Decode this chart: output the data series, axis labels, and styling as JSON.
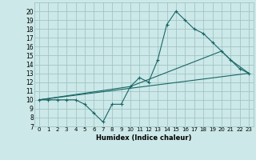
{
  "xlabel": "Humidex (Indice chaleur)",
  "bg_color": "#cce8e8",
  "line_color": "#1a6666",
  "xlim": [
    -0.5,
    23.5
  ],
  "ylim": [
    7,
    21
  ],
  "yticks": [
    7,
    8,
    9,
    10,
    11,
    12,
    13,
    14,
    15,
    16,
    17,
    18,
    19,
    20
  ],
  "xticks": [
    0,
    1,
    2,
    3,
    4,
    5,
    6,
    7,
    8,
    9,
    10,
    11,
    12,
    13,
    14,
    15,
    16,
    17,
    18,
    19,
    20,
    21,
    22,
    23
  ],
  "line1_x": [
    0,
    1,
    2,
    3,
    4,
    5,
    6,
    7,
    8,
    9,
    10,
    11,
    12,
    13,
    14,
    15,
    16,
    17,
    18,
    19,
    20,
    21,
    22,
    23
  ],
  "line1_y": [
    10,
    10,
    10,
    10,
    10,
    9.5,
    8.5,
    7.5,
    9.5,
    9.5,
    11.5,
    12.5,
    12,
    14.5,
    18.5,
    20,
    19,
    18,
    17.5,
    16.5,
    15.5,
    14.5,
    13.5,
    13
  ],
  "line2_x": [
    0,
    23
  ],
  "line2_y": [
    10,
    13
  ],
  "line3_x": [
    0,
    10,
    20,
    21,
    23
  ],
  "line3_y": [
    10,
    11.5,
    15.5,
    14.5,
    13
  ]
}
